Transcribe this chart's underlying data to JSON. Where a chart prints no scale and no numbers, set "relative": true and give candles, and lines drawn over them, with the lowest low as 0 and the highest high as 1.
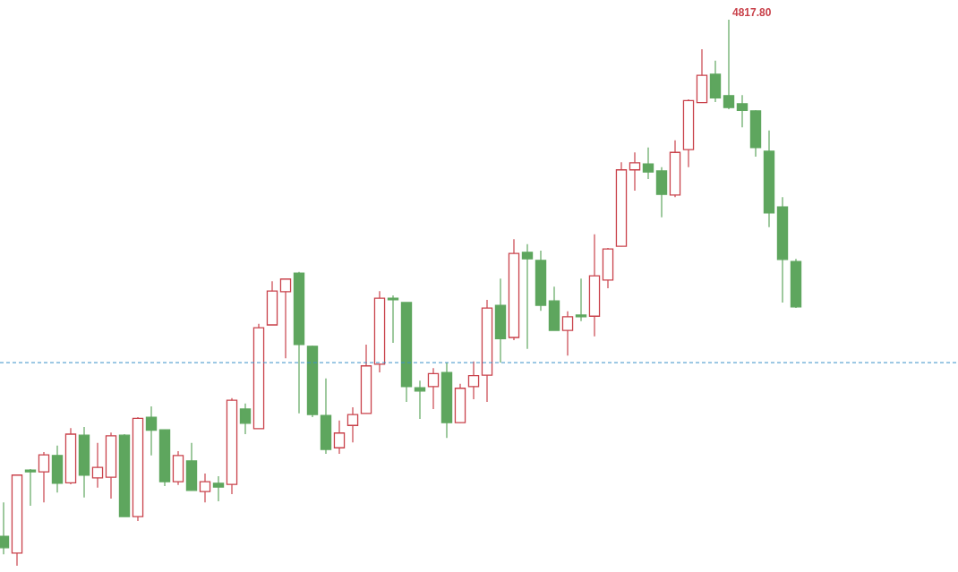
{
  "chart_data": {
    "type": "candlestick",
    "relative": true,
    "categories": [
      null,
      null,
      null,
      null,
      null,
      null,
      null,
      null,
      null,
      null,
      null,
      null,
      null,
      null,
      null,
      null,
      null,
      null,
      null,
      null,
      null,
      null,
      null,
      null,
      null,
      null,
      null,
      null,
      null,
      null,
      null,
      null,
      null,
      null,
      null,
      null,
      null,
      null,
      null,
      null,
      null,
      null,
      null,
      null,
      null,
      null,
      null,
      null,
      null,
      null,
      null,
      null,
      null,
      null,
      null,
      null,
      null,
      null,
      null,
      null
    ],
    "ohlc": [
      [
        0.054,
        0.116,
        0.021,
        0.033
      ],
      [
        0.023,
        0.167,
        0.0,
        0.166
      ],
      [
        0.175,
        0.177,
        0.11,
        0.172
      ],
      [
        0.172,
        0.208,
        0.116,
        0.203
      ],
      [
        0.202,
        0.22,
        0.134,
        0.151
      ],
      [
        0.152,
        0.252,
        0.149,
        0.241
      ],
      [
        0.239,
        0.254,
        0.125,
        0.166
      ],
      [
        0.161,
        0.225,
        0.143,
        0.18
      ],
      [
        0.162,
        0.244,
        0.123,
        0.238
      ],
      [
        0.239,
        0.241,
        0.09,
        0.09
      ],
      [
        0.09,
        0.272,
        0.082,
        0.27
      ],
      [
        0.272,
        0.292,
        0.202,
        0.248
      ],
      [
        0.249,
        0.249,
        0.146,
        0.154
      ],
      [
        0.154,
        0.21,
        0.148,
        0.202
      ],
      [
        0.192,
        0.225,
        0.138,
        0.138
      ],
      [
        0.136,
        0.169,
        0.116,
        0.154
      ],
      [
        0.151,
        0.164,
        0.118,
        0.144
      ],
      [
        0.149,
        0.307,
        0.131,
        0.303
      ],
      [
        0.287,
        0.297,
        0.241,
        0.261
      ],
      [
        0.251,
        0.443,
        0.251,
        0.436
      ],
      [
        0.441,
        0.521,
        0.441,
        0.503
      ],
      [
        0.502,
        0.526,
        0.38,
        0.525
      ],
      [
        0.536,
        0.538,
        0.279,
        0.405
      ],
      [
        0.402,
        0.403,
        0.272,
        0.277
      ],
      [
        0.275,
        0.343,
        0.205,
        0.213
      ],
      [
        0.216,
        0.266,
        0.205,
        0.243
      ],
      [
        0.257,
        0.29,
        0.226,
        0.277
      ],
      [
        0.279,
        0.405,
        0.279,
        0.366
      ],
      [
        0.369,
        0.503,
        0.354,
        0.49
      ],
      [
        0.49,
        0.495,
        0.408,
        0.487
      ],
      [
        0.482,
        0.482,
        0.3,
        0.328
      ],
      [
        0.326,
        0.339,
        0.269,
        0.32
      ],
      [
        0.328,
        0.362,
        0.287,
        0.352
      ],
      [
        0.354,
        0.372,
        0.234,
        0.262
      ],
      [
        0.262,
        0.333,
        0.262,
        0.325
      ],
      [
        0.328,
        0.374,
        0.305,
        0.348
      ],
      [
        0.349,
        0.487,
        0.3,
        0.472
      ],
      [
        0.477,
        0.526,
        0.372,
        0.416
      ],
      [
        0.418,
        0.598,
        0.413,
        0.572
      ],
      [
        0.574,
        0.589,
        0.397,
        0.562
      ],
      [
        0.559,
        0.577,
        0.467,
        0.477
      ],
      [
        0.485,
        0.511,
        0.431,
        0.431
      ],
      [
        0.431,
        0.466,
        0.385,
        0.456
      ],
      [
        0.459,
        0.526,
        0.448,
        0.456
      ],
      [
        0.457,
        0.607,
        0.42,
        0.531
      ],
      [
        0.523,
        0.582,
        0.508,
        0.58
      ],
      [
        0.585,
        0.739,
        0.585,
        0.725
      ],
      [
        0.725,
        0.757,
        0.687,
        0.738
      ],
      [
        0.736,
        0.766,
        0.708,
        0.721
      ],
      [
        0.723,
        0.73,
        0.638,
        0.68
      ],
      [
        0.679,
        0.779,
        0.675,
        0.757
      ],
      [
        0.762,
        0.854,
        0.73,
        0.852
      ],
      [
        0.848,
        0.946,
        0.848,
        0.898
      ],
      [
        0.9,
        0.925,
        0.849,
        0.857
      ],
      [
        0.861,
        1.0,
        0.836,
        0.839
      ],
      [
        0.846,
        0.862,
        0.803,
        0.834
      ],
      [
        0.833,
        0.834,
        0.749,
        0.766
      ],
      [
        0.759,
        0.797,
        0.62,
        0.646
      ],
      [
        0.657,
        0.675,
        0.482,
        0.561
      ],
      [
        0.557,
        0.562,
        0.472,
        0.474
      ]
    ],
    "colors": [
      "#5ea65e",
      "#c9424b",
      "#5ea65e",
      "#c9424b",
      "#5ea65e",
      "#c9424b",
      "#5ea65e",
      "#c9424b",
      "#c9424b",
      "#5ea65e",
      "#c9424b",
      "#5ea65e",
      "#5ea65e",
      "#c9424b",
      "#5ea65e",
      "#c9424b",
      "#5ea65e",
      "#c9424b",
      "#5ea65e",
      "#c9424b",
      "#c9424b",
      "#c9424b",
      "#5ea65e",
      "#5ea65e",
      "#5ea65e",
      "#c9424b",
      "#c9424b",
      "#c9424b",
      "#c9424b",
      "#5ea65e",
      "#5ea65e",
      "#5ea65e",
      "#c9424b",
      "#5ea65e",
      "#c9424b",
      "#c9424b",
      "#c9424b",
      "#5ea65e",
      "#c9424b",
      "#5ea65e",
      "#5ea65e",
      "#5ea65e",
      "#c9424b",
      "#5ea65e",
      "#c9424b",
      "#c9424b",
      "#c9424b",
      "#c9424b",
      "#5ea65e",
      "#5ea65e",
      "#c9424b",
      "#c9424b",
      "#c9424b",
      "#5ea65e",
      "#5ea65e",
      "#5ea65e",
      "#5ea65e",
      "#5ea65e",
      "#5ea65e",
      "#5ea65e"
    ],
    "ref_lines": [
      {
        "axis": "y",
        "value": 0.372,
        "color": "#3a8fc8",
        "line_style": "dashed"
      }
    ],
    "annotations": [
      "4817.80"
    ]
  }
}
